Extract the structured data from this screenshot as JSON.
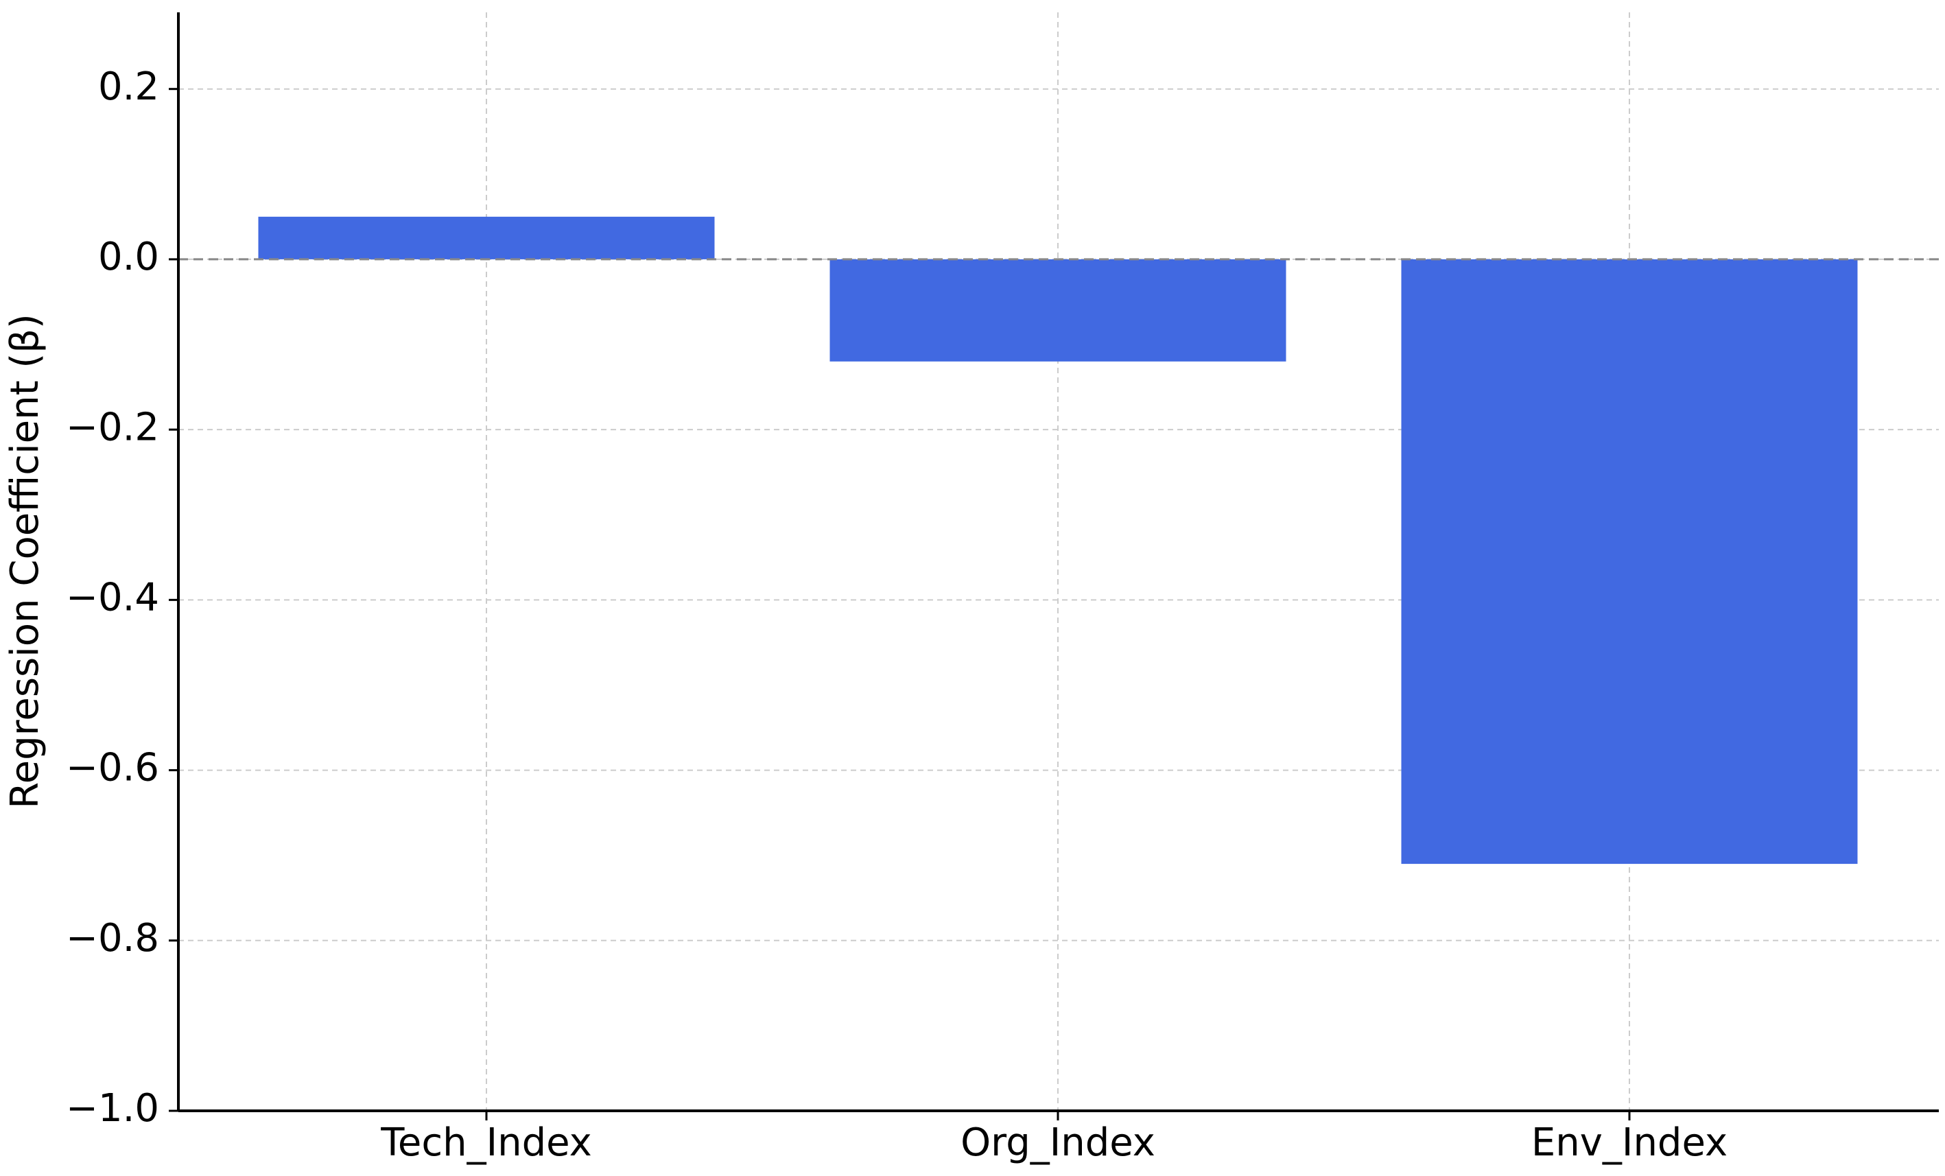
{
  "chart_data": {
    "type": "bar",
    "y_label": "Regression Coefficient (β)",
    "categories": [
      "Tech_Index",
      "Org_Index",
      "Env_Index"
    ],
    "values": [
      0.05,
      -0.12,
      -0.71
    ],
    "color": "#4169e1",
    "ylim": [
      -1.0,
      0.29
    ],
    "yticks": [
      {
        "value": -1.0,
        "label": "−1.0"
      },
      {
        "value": -0.8,
        "label": "−0.8"
      },
      {
        "value": -0.6,
        "label": "−0.6"
      },
      {
        "value": -0.4,
        "label": "−0.4"
      },
      {
        "value": -0.2,
        "label": "−0.2"
      },
      {
        "value": 0.0,
        "label": "0.0"
      },
      0.2
    ],
    "reference_line": 0,
    "grid": true
  }
}
